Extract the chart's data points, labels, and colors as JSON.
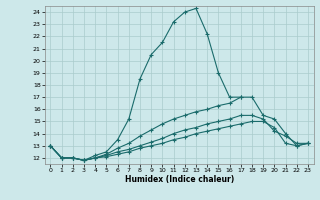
{
  "xlabel": "Humidex (Indice chaleur)",
  "bg_color": "#cde8ea",
  "grid_color": "#aacccc",
  "line_color": "#1a6b6b",
  "xlim": [
    -0.5,
    23.5
  ],
  "ylim": [
    11.5,
    24.5
  ],
  "xticks": [
    0,
    1,
    2,
    3,
    4,
    5,
    6,
    7,
    8,
    9,
    10,
    11,
    12,
    13,
    14,
    15,
    16,
    17,
    18,
    19,
    20,
    21,
    22,
    23
  ],
  "yticks": [
    12,
    13,
    14,
    15,
    16,
    17,
    18,
    19,
    20,
    21,
    22,
    23,
    24
  ],
  "curve1_x": [
    0,
    1,
    2,
    3,
    4,
    5,
    6,
    7,
    8,
    9,
    10,
    11,
    12,
    13,
    14,
    15,
    16,
    17
  ],
  "curve1_y": [
    13.0,
    12.0,
    12.0,
    11.8,
    12.2,
    12.5,
    13.5,
    15.2,
    18.5,
    20.5,
    21.5,
    23.2,
    24.0,
    24.3,
    22.2,
    19.0,
    17.0,
    17.0
  ],
  "curve2_x": [
    0,
    1,
    2,
    3,
    4,
    5,
    6,
    7,
    8,
    9,
    10,
    11,
    12,
    13,
    14,
    15,
    16,
    17,
    18,
    19,
    20,
    21,
    22,
    23
  ],
  "curve2_y": [
    13.0,
    12.0,
    12.0,
    11.8,
    12.0,
    12.3,
    12.8,
    13.2,
    13.8,
    14.3,
    14.8,
    15.2,
    15.5,
    15.8,
    16.0,
    16.3,
    16.5,
    17.0,
    17.0,
    15.5,
    15.2,
    14.0,
    13.0,
    13.2
  ],
  "curve3_x": [
    0,
    1,
    2,
    3,
    4,
    5,
    6,
    7,
    8,
    9,
    10,
    11,
    12,
    13,
    14,
    15,
    16,
    17,
    18,
    19,
    20,
    21,
    22,
    23
  ],
  "curve3_y": [
    13.0,
    12.0,
    12.0,
    11.8,
    12.0,
    12.2,
    12.5,
    12.7,
    13.0,
    13.3,
    13.6,
    14.0,
    14.3,
    14.5,
    14.8,
    15.0,
    15.2,
    15.5,
    15.5,
    15.2,
    14.2,
    13.8,
    13.2,
    13.2
  ],
  "curve4_x": [
    0,
    1,
    2,
    3,
    4,
    5,
    6,
    7,
    8,
    9,
    10,
    11,
    12,
    13,
    14,
    15,
    16,
    17,
    18,
    19,
    20,
    21,
    22,
    23
  ],
  "curve4_y": [
    13.0,
    12.0,
    12.0,
    11.8,
    12.0,
    12.1,
    12.3,
    12.5,
    12.8,
    13.0,
    13.2,
    13.5,
    13.7,
    14.0,
    14.2,
    14.4,
    14.6,
    14.8,
    15.0,
    15.0,
    14.5,
    13.2,
    13.0,
    13.2
  ]
}
